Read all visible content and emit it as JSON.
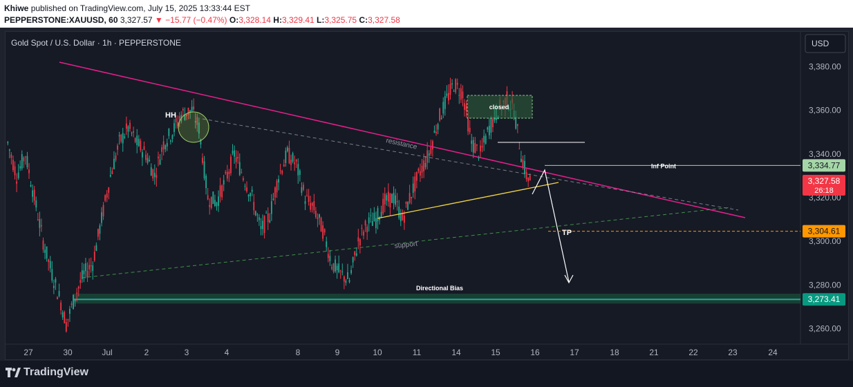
{
  "header": {
    "publisher": "Khiwe",
    "published_line": "published on TradingView.com, July 15, 2025 13:33:44 EST",
    "symbol": "PEPPERSTONE:XAUUSD, 60",
    "last": "3,327.57",
    "change": "−15.77 (−0.47%)",
    "open_label": "O:",
    "open": "3,328.14",
    "high_label": "H:",
    "high": "3,329.41",
    "low_label": "L:",
    "low": "3,325.75",
    "close_label": "C:",
    "close": "3,327.58"
  },
  "chart_title": "Gold Spot / U.S. Dollar · 1h · PEPPERSTONE",
  "currency_button": "USD",
  "brand": "TradingView",
  "colors": {
    "up": "#22ab94",
    "down": "#f23645",
    "resistance": "#e91e8c",
    "yellow_line": "#f5d742",
    "support": "#4caf50",
    "green_zone": "#1b5e3f"
  },
  "chart_data": {
    "type": "candlestick",
    "ylim": [
      3245,
      3395
    ],
    "y_ticks": [
      "3,260.00",
      "3,280.00",
      "3,300.00",
      "3,320.00",
      "3,340.00",
      "3,360.00",
      "3,380.00"
    ],
    "x_ticks": [
      "27",
      "30",
      "Jul",
      "2",
      "3",
      "4",
      "8",
      "9",
      "10",
      "11",
      "14",
      "15",
      "16",
      "17",
      "18",
      "21",
      "22",
      "23",
      "24"
    ],
    "price_tags": [
      {
        "label": "3,334.77",
        "value": 3334.77,
        "color": "#a5d6a7",
        "text_color": "#131722"
      },
      {
        "label": "3,327.58",
        "value": 3327.58,
        "color": "#f23645",
        "text_color": "#ffffff",
        "sub": "26:18"
      },
      {
        "label": "3,304.61",
        "value": 3304.61,
        "color": "#ff9800",
        "text_color": "#131722"
      },
      {
        "label": "3,273.41",
        "value": 3273.41,
        "color": "#089981",
        "text_color": "#ffffff"
      }
    ],
    "annotations": {
      "hh": "HH",
      "closed": "closed",
      "resistance": "resistance",
      "support": "support",
      "inf_point": "Inf Point",
      "tp": "TP",
      "directional_bias": "Directional Bias"
    },
    "path_points": [
      [
        0,
        3345
      ],
      [
        5,
        3330
      ],
      [
        10,
        3340
      ],
      [
        15,
        3320
      ],
      [
        20,
        3300
      ],
      [
        25,
        3285
      ],
      [
        30,
        3272
      ],
      [
        33,
        3262
      ],
      [
        38,
        3275
      ],
      [
        43,
        3285
      ],
      [
        48,
        3290
      ],
      [
        53,
        3310
      ],
      [
        58,
        3330
      ],
      [
        63,
        3345
      ],
      [
        68,
        3352
      ],
      [
        73,
        3345
      ],
      [
        78,
        3340
      ],
      [
        83,
        3330
      ],
      [
        88,
        3345
      ],
      [
        93,
        3350
      ],
      [
        98,
        3358
      ],
      [
        104,
        3360
      ],
      [
        108,
        3352
      ],
      [
        113,
        3320
      ],
      [
        118,
        3318
      ],
      [
        123,
        3328
      ],
      [
        128,
        3340
      ],
      [
        133,
        3330
      ],
      [
        138,
        3320
      ],
      [
        143,
        3305
      ],
      [
        148,
        3312
      ],
      [
        153,
        3330
      ],
      [
        158,
        3340
      ],
      [
        163,
        3335
      ],
      [
        168,
        3320
      ],
      [
        173,
        3315
      ],
      [
        178,
        3305
      ],
      [
        183,
        3290
      ],
      [
        188,
        3285
      ],
      [
        193,
        3282
      ],
      [
        198,
        3300
      ],
      [
        203,
        3308
      ],
      [
        208,
        3310
      ],
      [
        213,
        3318
      ],
      [
        218,
        3320
      ],
      [
        223,
        3310
      ],
      [
        228,
        3322
      ],
      [
        233,
        3332
      ],
      [
        238,
        3340
      ],
      [
        243,
        3355
      ],
      [
        248,
        3365
      ],
      [
        252,
        3372
      ],
      [
        257,
        3368
      ],
      [
        262,
        3345
      ],
      [
        267,
        3340
      ],
      [
        272,
        3352
      ],
      [
        277,
        3360
      ],
      [
        282,
        3365
      ],
      [
        286,
        3360
      ],
      [
        290,
        3340
      ],
      [
        293,
        3330
      ],
      [
        296,
        3327.58
      ]
    ]
  }
}
